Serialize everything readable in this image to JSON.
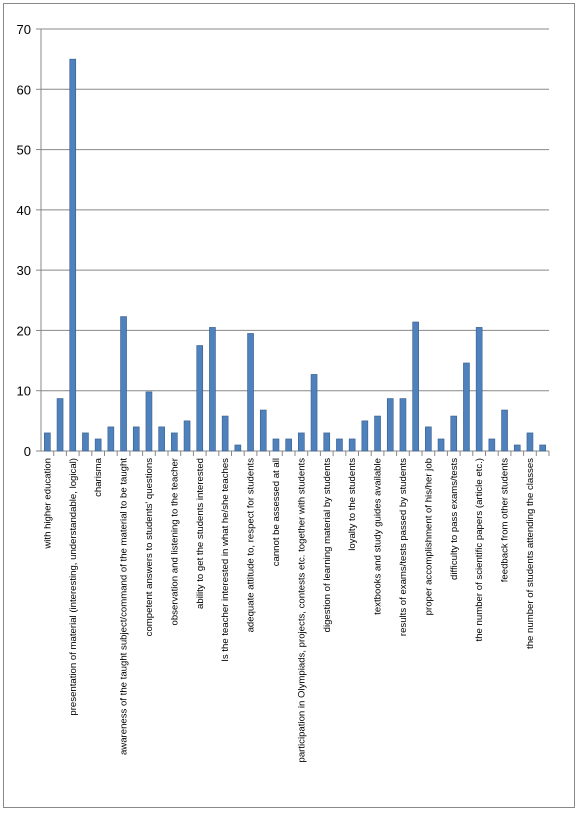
{
  "chart_data": {
    "type": "bar",
    "categories": [
      "with higher education",
      null,
      "presentation of material (interesting, understandable, logical)",
      null,
      "charisma",
      null,
      "awareness of the taught subject/command of the material to be taught",
      null,
      "competent answers to students' questions",
      null,
      "observation and listening to the teacher",
      null,
      "ability to get the students interested",
      null,
      "Is the teacher interested in what he/she teaches",
      null,
      "adequate attitude to, respect for students",
      null,
      "cannot be assessed at all",
      null,
      "participation in Olympiads, projects, contests etc. together with students",
      null,
      "digestion of learning material by students",
      null,
      "loyalty to the students",
      null,
      "textbooks and study guides available",
      null,
      "results of exams/tests passed by students",
      null,
      "proper accomplishment of his/her job",
      null,
      "difficulty to pass exams/tests",
      null,
      "the number of scientific papers (article etc.)",
      null,
      "feedback from other students",
      null,
      "the number of students attending the classes",
      null
    ],
    "values": [
      3,
      8.7,
      65,
      3,
      2,
      4,
      22.3,
      4,
      9.8,
      4,
      3,
      5,
      17.5,
      20.5,
      5.8,
      1,
      19.5,
      6.8,
      2,
      2,
      3,
      12.7,
      3,
      2,
      2,
      5,
      5.8,
      8.7,
      8.7,
      21.4,
      4,
      2,
      5.8,
      14.6,
      20.5,
      2,
      6.8,
      1,
      3,
      1
    ],
    "color": "#4f81bd",
    "ylim": [
      0,
      70
    ],
    "yticks": [
      0,
      10,
      20,
      30,
      40,
      50,
      60,
      70
    ],
    "grid": true
  }
}
